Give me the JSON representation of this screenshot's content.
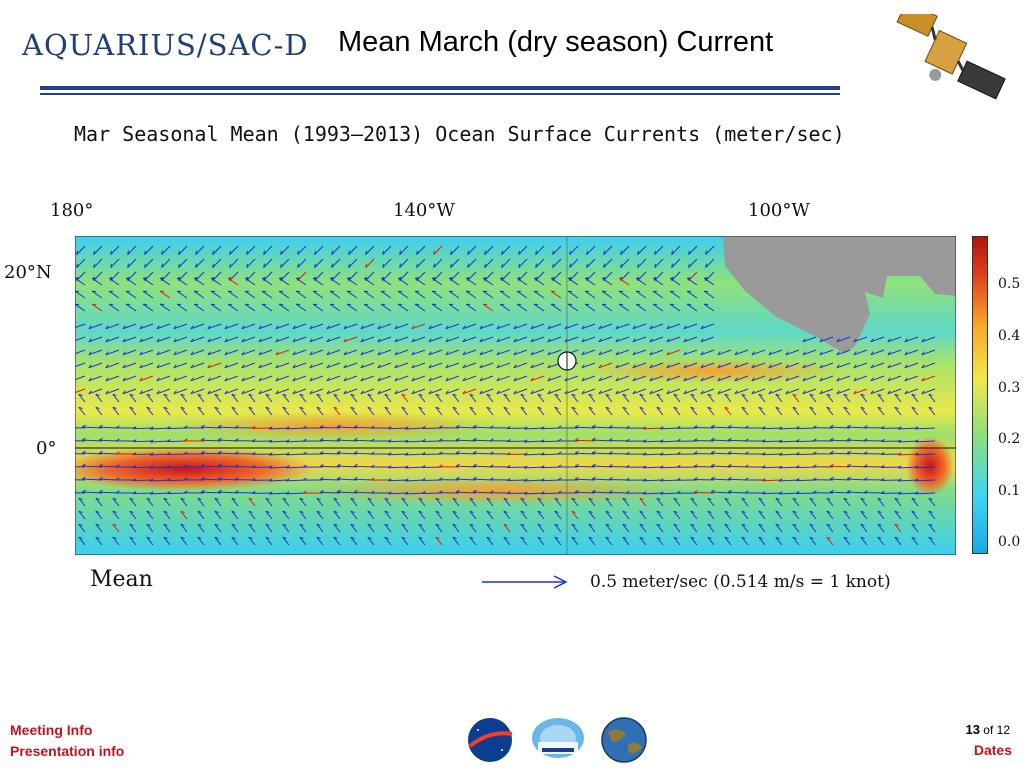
{
  "header": {
    "logo_text": "AQUARIUS/SAC-D",
    "title": "Mean March (dry season) Current"
  },
  "figure": {
    "title": "Mar Seasonal Mean (1993–2013) Ocean Surface Currents (meter/sec)",
    "lon_labels": [
      "180°",
      "140°W",
      "100°W"
    ],
    "lat_labels": [
      "20°N",
      "0°"
    ],
    "colorbar_ticks": [
      "0.5",
      "0.4",
      "0.3",
      "0.2",
      "0.1",
      "0.0"
    ],
    "mean_label": "Mean",
    "legend_text": "0.5 meter/sec   (0.514 m/s = 1 knot)",
    "colors": {
      "arrow_slow": "#1f2fd6",
      "arrow_fast": "#e01818",
      "land": "#9a9a9a"
    }
  },
  "footer": {
    "meeting_info": "Meeting Info",
    "presentation_info": "Presentation info",
    "page_current": "13",
    "page_of": "of 12",
    "dates": "Dates"
  }
}
